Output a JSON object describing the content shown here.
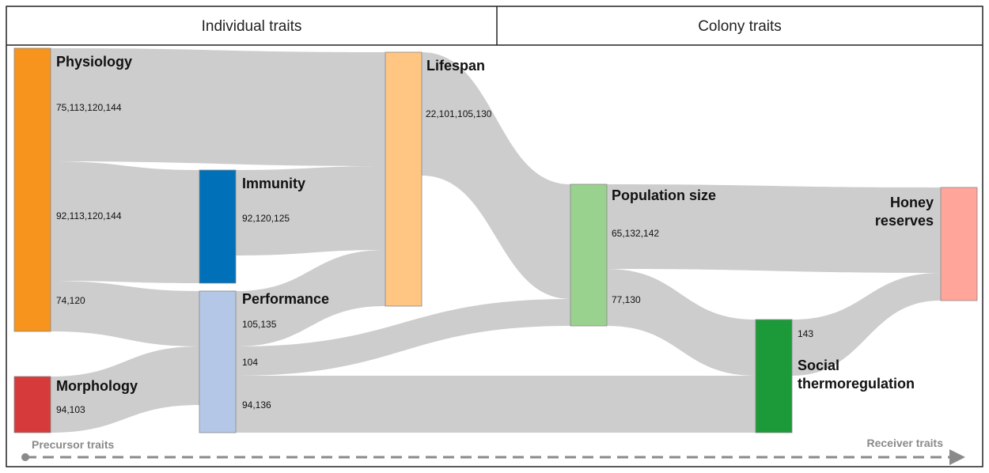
{
  "header": {
    "left": "Individual traits",
    "right": "Colony traits"
  },
  "nodes": [
    {
      "label": [
        "Physiology"
      ]
    },
    {
      "label": [
        "Morphology"
      ]
    },
    {
      "label": [
        "Immunity"
      ]
    },
    {
      "label": [
        "Performance"
      ]
    },
    {
      "label": [
        "Lifespan"
      ]
    },
    {
      "label": [
        "Population size"
      ]
    },
    {
      "label": [
        "Social",
        "thermoregulation"
      ]
    },
    {
      "label": [
        "Honey",
        "reserves"
      ]
    }
  ],
  "links": [
    {
      "label": "75,113,120,144"
    },
    {
      "label": "92,113,120,144"
    },
    {
      "label": "74,120"
    },
    {
      "label": "94,103"
    },
    {
      "label": "92,120,125"
    },
    {
      "label": "105,135"
    },
    {
      "label": "104"
    },
    {
      "label": "94,136"
    },
    {
      "label": "22,101,105,130"
    },
    {
      "label": "65,132,142"
    },
    {
      "label": "77,130"
    },
    {
      "label": "143"
    }
  ],
  "footer": {
    "start": "Precursor traits",
    "end": "Receiver traits"
  }
}
